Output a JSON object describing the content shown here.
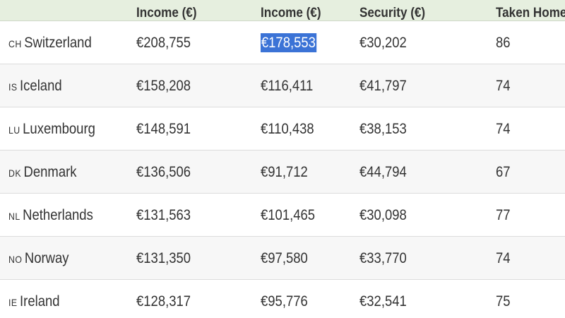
{
  "table": {
    "headers": [
      "Income (€)",
      "Income (€)",
      "Security (€)",
      "Taken Home"
    ],
    "rows": [
      {
        "code": "CH",
        "country": "Switzerland",
        "gross": "€208,755",
        "net": "€178,553",
        "social": "€30,202",
        "taken": "86"
      },
      {
        "code": "IS",
        "country": "Iceland",
        "gross": "€158,208",
        "net": "€116,411",
        "social": "€41,797",
        "taken": "74"
      },
      {
        "code": "LU",
        "country": "Luxembourg",
        "gross": "€148,591",
        "net": "€110,438",
        "social": "€38,153",
        "taken": "74"
      },
      {
        "code": "DK",
        "country": "Denmark",
        "gross": "€136,506",
        "net": "€91,712",
        "social": "€44,794",
        "taken": "67"
      },
      {
        "code": "NL",
        "country": "Netherlands",
        "gross": "€131,563",
        "net": "€101,465",
        "social": "€30,098",
        "taken": "77"
      },
      {
        "code": "NO",
        "country": "Norway",
        "gross": "€131,350",
        "net": "€97,580",
        "social": "€33,770",
        "taken": "74"
      },
      {
        "code": "IE",
        "country": "Ireland",
        "gross": "€128,317",
        "net": "€95,776",
        "social": "€32,541",
        "taken": "75"
      }
    ],
    "selected_cell": {
      "row": 0,
      "column": "net"
    }
  },
  "colors": {
    "header_bg": "#e6efdf",
    "selection": "#3b73d6"
  }
}
